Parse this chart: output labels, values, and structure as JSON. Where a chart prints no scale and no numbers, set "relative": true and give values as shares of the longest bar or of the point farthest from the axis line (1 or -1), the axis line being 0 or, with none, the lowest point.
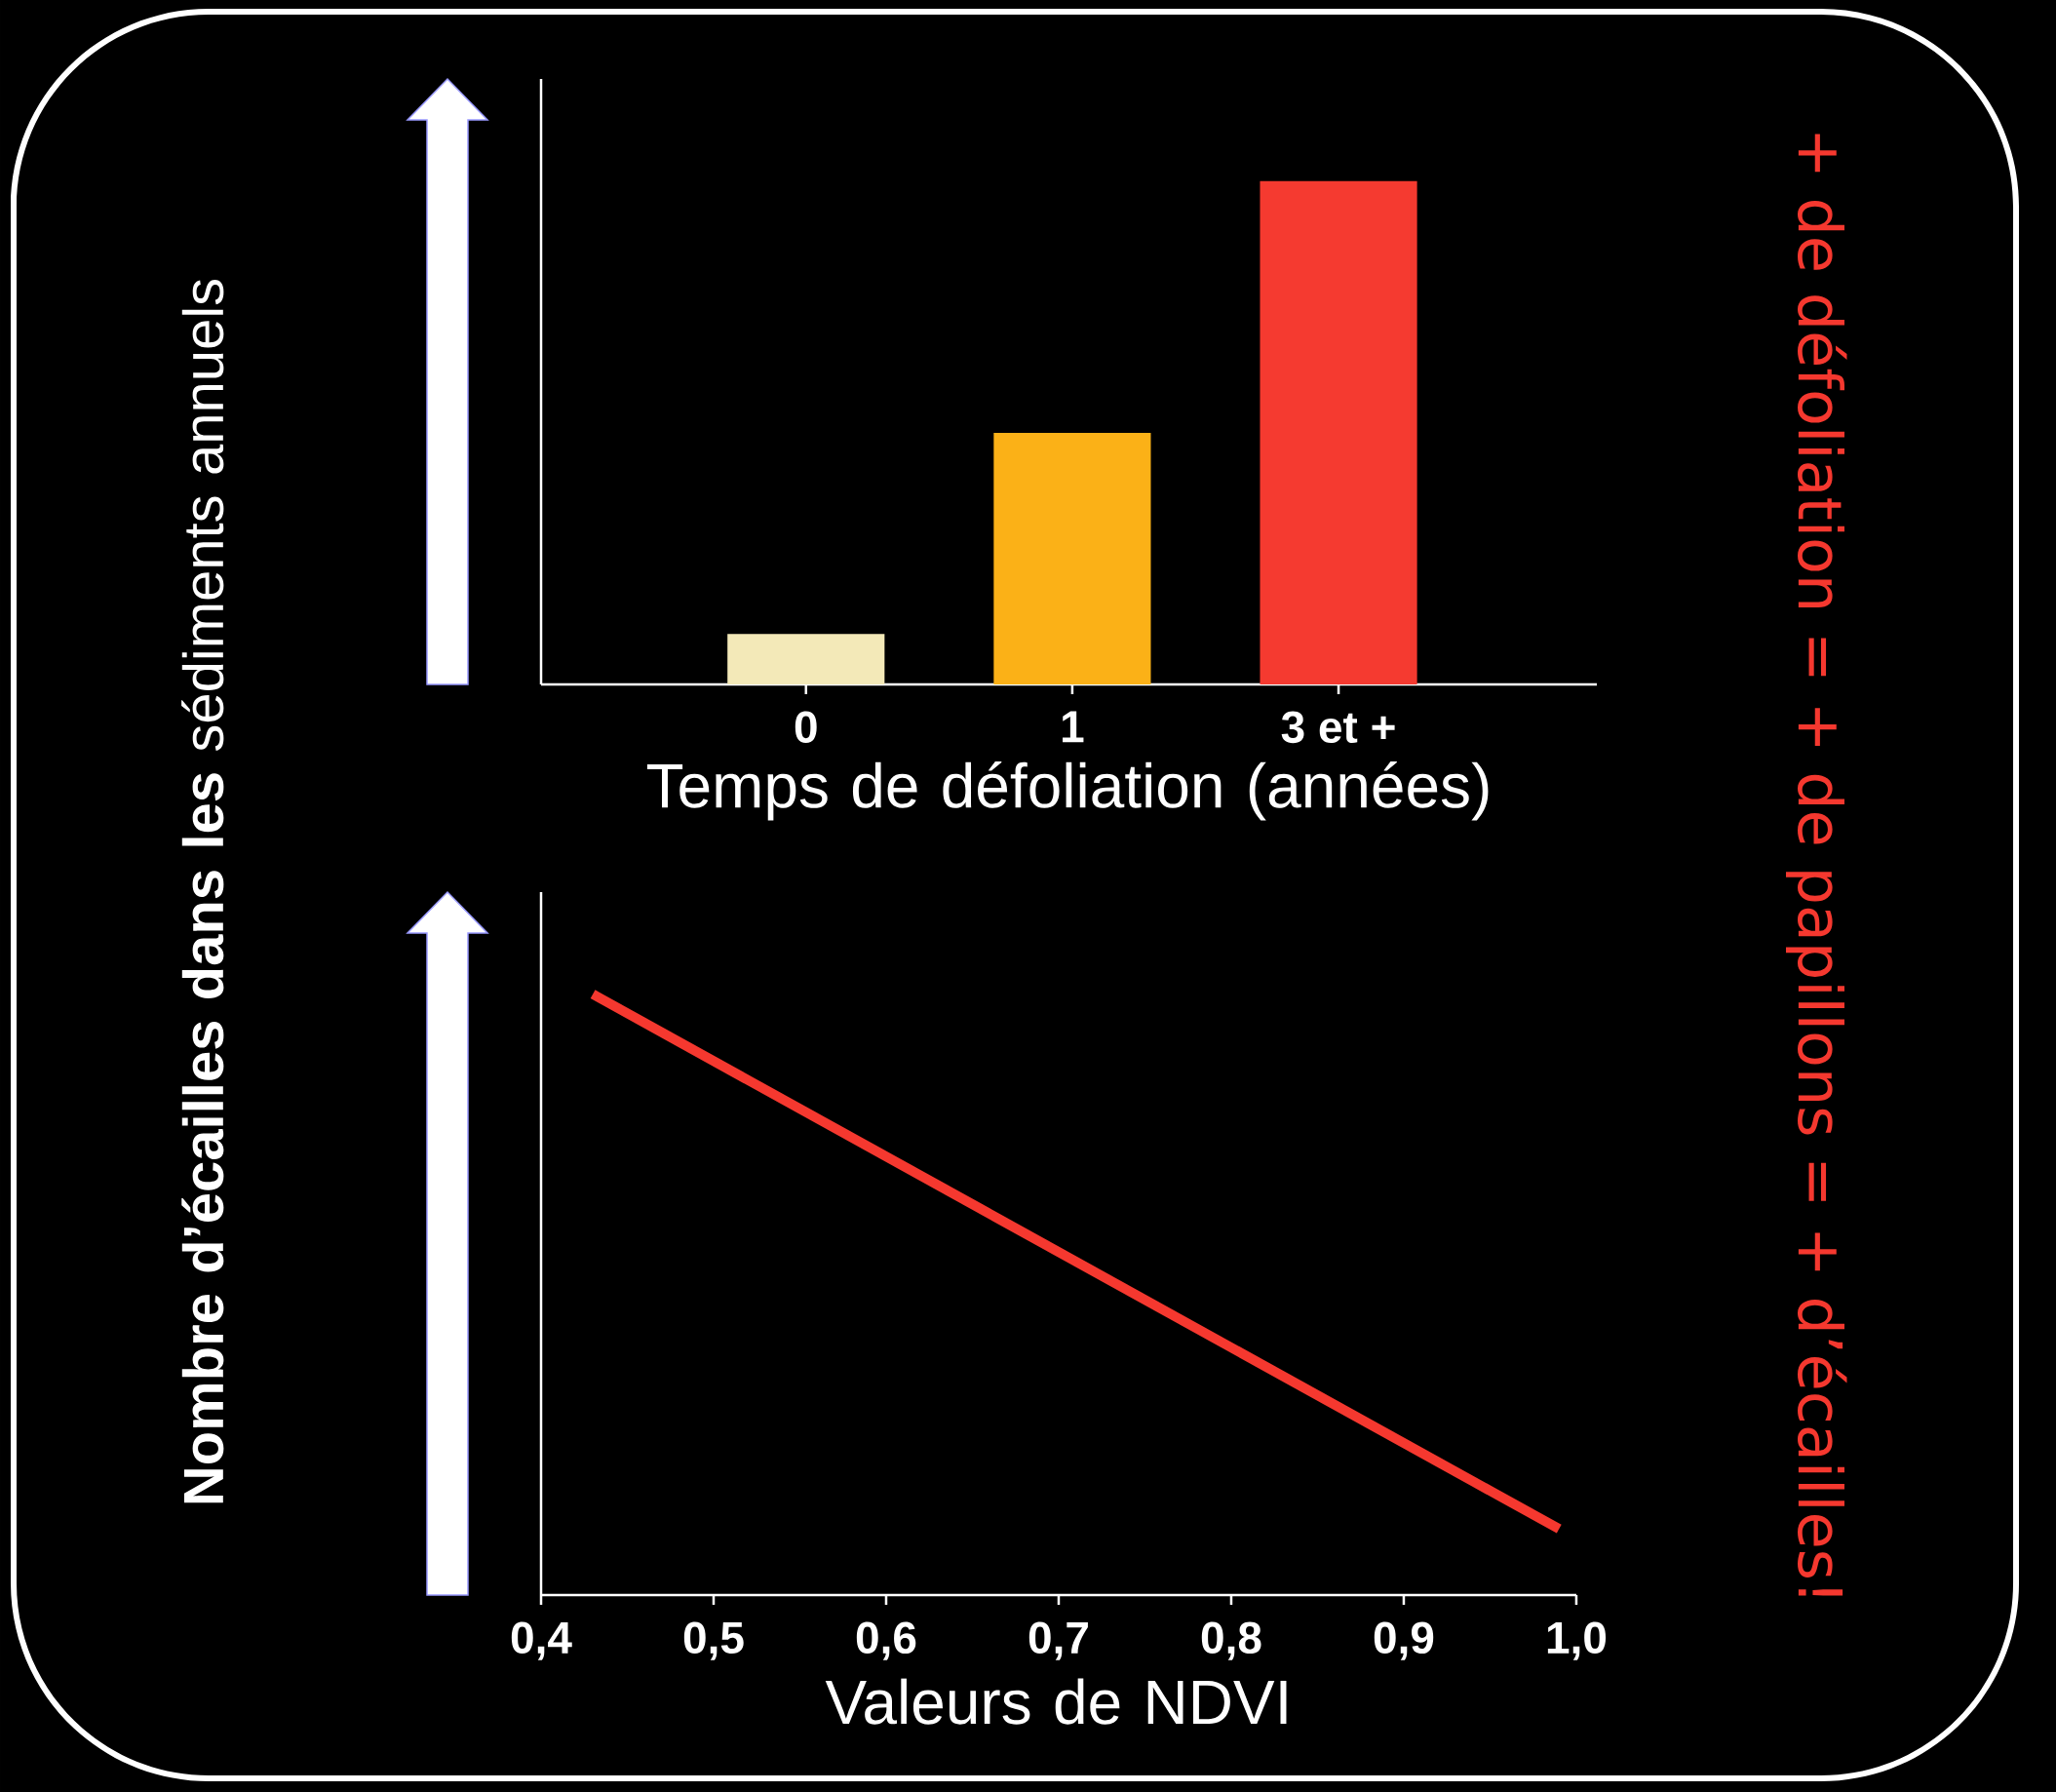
{
  "chart_data": [
    {
      "type": "bar",
      "categories": [
        "0",
        "1",
        "3 et +"
      ],
      "values": [
        0.1,
        0.5,
        1
      ],
      "colors": [
        "#f3e9b8",
        "#fbb117",
        "#f53a30"
      ],
      "relative": true,
      "xlabel": "Temps de défoliation (années)",
      "annotations": [
        "+ de défoliation = + de papillons = + d’écailles!"
      ]
    },
    {
      "type": "line",
      "x": [
        0.43,
        0.99
      ],
      "values": [
        1,
        0.11
      ],
      "color": "#f5382f",
      "relative": true,
      "xlim": [
        0.4,
        1.0
      ],
      "xticks": [
        {
          "value": 0.4,
          "label": "0,4"
        },
        {
          "value": 0.5,
          "label": "0,5"
        },
        {
          "value": 0.6,
          "label": "0,6"
        },
        {
          "value": 0.7,
          "label": "0,7"
        },
        {
          "value": 0.8,
          "label": "0,8"
        },
        {
          "value": 0.9,
          "label": "0,9"
        },
        {
          "value": 1.0,
          "label": "1,0"
        }
      ],
      "xlabel": "Valeurs de NDVI",
      "ylabel": "**Nombre d’écailles dans les** sédiments annuels"
    }
  ]
}
